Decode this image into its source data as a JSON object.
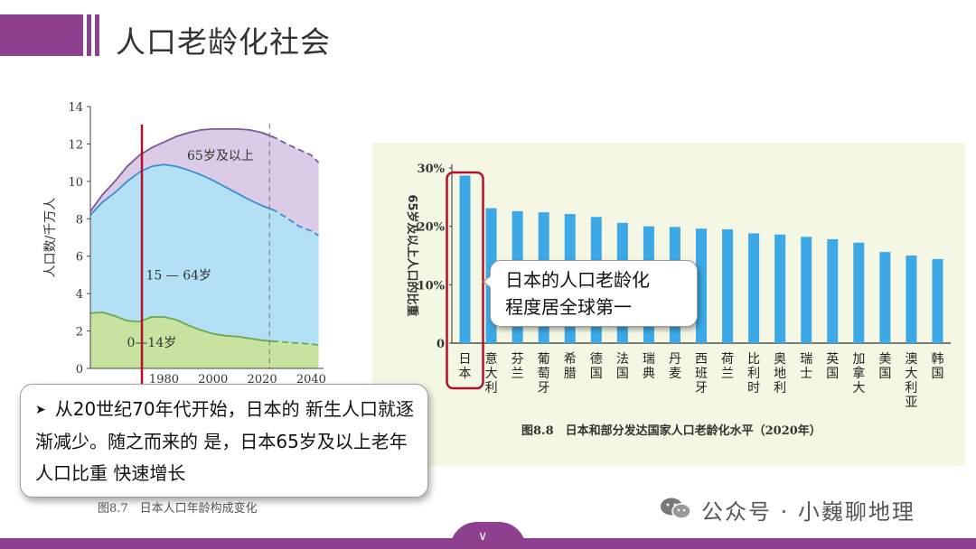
{
  "slide": {
    "title": "人口老龄化社会"
  },
  "chart_data": [
    {
      "type": "area",
      "xlabel": "",
      "ylabel": "人口数/千万人",
      "ylim": [
        0,
        14
      ],
      "xlim": [
        1950,
        2045
      ],
      "x_ticks": [
        1980,
        2000,
        2020,
        2040
      ],
      "x_tick_labels_visible": [
        "1980",
        "2000",
        "2020",
        "2040"
      ],
      "y_ticks": [
        0,
        2,
        4,
        6,
        8,
        10,
        12,
        14
      ],
      "projection_start": 2023,
      "marker_year": 1971,
      "series": [
        {
          "name": "0—14岁",
          "x": [
            1950,
            1955,
            1960,
            1965,
            1970,
            1975,
            1980,
            1985,
            1990,
            1995,
            2000,
            2005,
            2010,
            2015,
            2020,
            2025,
            2030,
            2035,
            2040,
            2043
          ],
          "values": [
            2.95,
            3.0,
            2.8,
            2.55,
            2.5,
            2.75,
            2.75,
            2.6,
            2.3,
            2.05,
            1.85,
            1.75,
            1.7,
            1.6,
            1.5,
            1.45,
            1.4,
            1.35,
            1.3,
            1.25
          ]
        },
        {
          "name": "15 — 64岁",
          "x": [
            1950,
            1955,
            1960,
            1965,
            1970,
            1975,
            1980,
            1985,
            1990,
            1995,
            2000,
            2005,
            2010,
            2015,
            2020,
            2025,
            2030,
            2035,
            2040,
            2043
          ],
          "values": [
            8.2,
            8.9,
            9.4,
            10.0,
            10.5,
            10.8,
            10.9,
            10.8,
            10.6,
            10.35,
            10.05,
            9.7,
            9.35,
            9.0,
            8.7,
            8.45,
            8.05,
            7.6,
            7.35,
            7.1
          ]
        },
        {
          "name": "65岁及以上",
          "x": [
            1950,
            1955,
            1960,
            1965,
            1970,
            1975,
            1980,
            1985,
            1990,
            1995,
            2000,
            2005,
            2010,
            2015,
            2020,
            2025,
            2030,
            2035,
            2040,
            2043
          ],
          "values": [
            8.4,
            9.3,
            10.0,
            10.8,
            11.4,
            11.8,
            12.1,
            12.4,
            12.6,
            12.75,
            12.8,
            12.8,
            12.8,
            12.75,
            12.6,
            12.35,
            12.0,
            11.7,
            11.4,
            11.0
          ]
        }
      ],
      "caption": "图8.7　日本人口年龄构成变化"
    },
    {
      "type": "bar",
      "ylabel": "65岁及以上人口的比重",
      "ylim": [
        0,
        30
      ],
      "y_ticks": [
        "0",
        "10%",
        "20%",
        "30%"
      ],
      "categories": [
        "日本",
        "意大利",
        "芬兰",
        "葡萄牙",
        "希腊",
        "德国",
        "法国",
        "瑞典",
        "丹麦",
        "西班牙",
        "荷兰",
        "比利时",
        "奥地利",
        "瑞士",
        "英国",
        "加拿大",
        "美国",
        "澳大利亚",
        "韩国"
      ],
      "values": [
        28.7,
        23.1,
        22.6,
        22.4,
        22.1,
        21.6,
        20.6,
        20.0,
        19.9,
        19.6,
        19.5,
        18.8,
        18.6,
        18.2,
        17.8,
        17.2,
        15.6,
        15.0,
        14.4
      ],
      "highlight": "日本",
      "bar_color": "#3ca8e6",
      "caption": "图8.8　日本和部分发达国家人口老龄化水平（2020年）"
    }
  ],
  "callout": {
    "line1": "日本的人口老龄化",
    "line2": "程度居全球第一"
  },
  "note": {
    "text": "从20世纪70年代开始，日本的 新生人口就逐渐减少。随之而来的 是，日本65岁及以上老年人口比重 快速增长"
  },
  "watermark": {
    "text": "公众号 · 小巍聊地理"
  },
  "colors": {
    "brand": "#8e3f8d",
    "marker": "#b0102a",
    "old": "#dccbe6",
    "work": "#b3e0f4",
    "young": "#c8e3a0"
  }
}
